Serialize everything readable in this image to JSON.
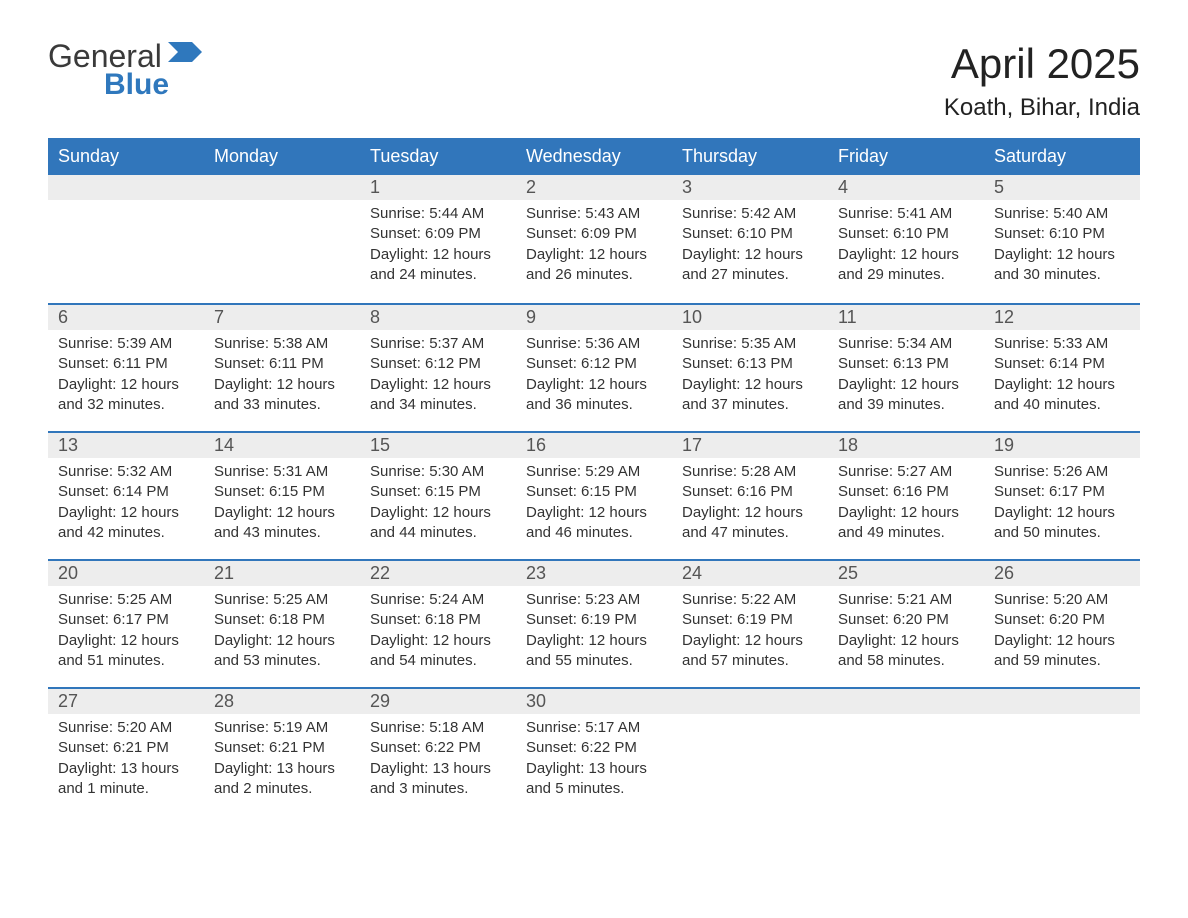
{
  "logo": {
    "text_general": "General",
    "text_blue": "Blue"
  },
  "title": "April 2025",
  "location": "Koath, Bihar, India",
  "colors": {
    "header_bg": "#3176bb",
    "header_text": "#ffffff",
    "daynum_bg": "#ededed",
    "row_border": "#3176bb",
    "body_text": "#333333",
    "logo_blue": "#2f78bd"
  },
  "weekdays": [
    "Sunday",
    "Monday",
    "Tuesday",
    "Wednesday",
    "Thursday",
    "Friday",
    "Saturday"
  ],
  "weeks": [
    [
      null,
      null,
      {
        "d": "1",
        "sr": "Sunrise: 5:44 AM",
        "ss": "Sunset: 6:09 PM",
        "dl": "Daylight: 12 hours and 24 minutes."
      },
      {
        "d": "2",
        "sr": "Sunrise: 5:43 AM",
        "ss": "Sunset: 6:09 PM",
        "dl": "Daylight: 12 hours and 26 minutes."
      },
      {
        "d": "3",
        "sr": "Sunrise: 5:42 AM",
        "ss": "Sunset: 6:10 PM",
        "dl": "Daylight: 12 hours and 27 minutes."
      },
      {
        "d": "4",
        "sr": "Sunrise: 5:41 AM",
        "ss": "Sunset: 6:10 PM",
        "dl": "Daylight: 12 hours and 29 minutes."
      },
      {
        "d": "5",
        "sr": "Sunrise: 5:40 AM",
        "ss": "Sunset: 6:10 PM",
        "dl": "Daylight: 12 hours and 30 minutes."
      }
    ],
    [
      {
        "d": "6",
        "sr": "Sunrise: 5:39 AM",
        "ss": "Sunset: 6:11 PM",
        "dl": "Daylight: 12 hours and 32 minutes."
      },
      {
        "d": "7",
        "sr": "Sunrise: 5:38 AM",
        "ss": "Sunset: 6:11 PM",
        "dl": "Daylight: 12 hours and 33 minutes."
      },
      {
        "d": "8",
        "sr": "Sunrise: 5:37 AM",
        "ss": "Sunset: 6:12 PM",
        "dl": "Daylight: 12 hours and 34 minutes."
      },
      {
        "d": "9",
        "sr": "Sunrise: 5:36 AM",
        "ss": "Sunset: 6:12 PM",
        "dl": "Daylight: 12 hours and 36 minutes."
      },
      {
        "d": "10",
        "sr": "Sunrise: 5:35 AM",
        "ss": "Sunset: 6:13 PM",
        "dl": "Daylight: 12 hours and 37 minutes."
      },
      {
        "d": "11",
        "sr": "Sunrise: 5:34 AM",
        "ss": "Sunset: 6:13 PM",
        "dl": "Daylight: 12 hours and 39 minutes."
      },
      {
        "d": "12",
        "sr": "Sunrise: 5:33 AM",
        "ss": "Sunset: 6:14 PM",
        "dl": "Daylight: 12 hours and 40 minutes."
      }
    ],
    [
      {
        "d": "13",
        "sr": "Sunrise: 5:32 AM",
        "ss": "Sunset: 6:14 PM",
        "dl": "Daylight: 12 hours and 42 minutes."
      },
      {
        "d": "14",
        "sr": "Sunrise: 5:31 AM",
        "ss": "Sunset: 6:15 PM",
        "dl": "Daylight: 12 hours and 43 minutes."
      },
      {
        "d": "15",
        "sr": "Sunrise: 5:30 AM",
        "ss": "Sunset: 6:15 PM",
        "dl": "Daylight: 12 hours and 44 minutes."
      },
      {
        "d": "16",
        "sr": "Sunrise: 5:29 AM",
        "ss": "Sunset: 6:15 PM",
        "dl": "Daylight: 12 hours and 46 minutes."
      },
      {
        "d": "17",
        "sr": "Sunrise: 5:28 AM",
        "ss": "Sunset: 6:16 PM",
        "dl": "Daylight: 12 hours and 47 minutes."
      },
      {
        "d": "18",
        "sr": "Sunrise: 5:27 AM",
        "ss": "Sunset: 6:16 PM",
        "dl": "Daylight: 12 hours and 49 minutes."
      },
      {
        "d": "19",
        "sr": "Sunrise: 5:26 AM",
        "ss": "Sunset: 6:17 PM",
        "dl": "Daylight: 12 hours and 50 minutes."
      }
    ],
    [
      {
        "d": "20",
        "sr": "Sunrise: 5:25 AM",
        "ss": "Sunset: 6:17 PM",
        "dl": "Daylight: 12 hours and 51 minutes."
      },
      {
        "d": "21",
        "sr": "Sunrise: 5:25 AM",
        "ss": "Sunset: 6:18 PM",
        "dl": "Daylight: 12 hours and 53 minutes."
      },
      {
        "d": "22",
        "sr": "Sunrise: 5:24 AM",
        "ss": "Sunset: 6:18 PM",
        "dl": "Daylight: 12 hours and 54 minutes."
      },
      {
        "d": "23",
        "sr": "Sunrise: 5:23 AM",
        "ss": "Sunset: 6:19 PM",
        "dl": "Daylight: 12 hours and 55 minutes."
      },
      {
        "d": "24",
        "sr": "Sunrise: 5:22 AM",
        "ss": "Sunset: 6:19 PM",
        "dl": "Daylight: 12 hours and 57 minutes."
      },
      {
        "d": "25",
        "sr": "Sunrise: 5:21 AM",
        "ss": "Sunset: 6:20 PM",
        "dl": "Daylight: 12 hours and 58 minutes."
      },
      {
        "d": "26",
        "sr": "Sunrise: 5:20 AM",
        "ss": "Sunset: 6:20 PM",
        "dl": "Daylight: 12 hours and 59 minutes."
      }
    ],
    [
      {
        "d": "27",
        "sr": "Sunrise: 5:20 AM",
        "ss": "Sunset: 6:21 PM",
        "dl": "Daylight: 13 hours and 1 minute."
      },
      {
        "d": "28",
        "sr": "Sunrise: 5:19 AM",
        "ss": "Sunset: 6:21 PM",
        "dl": "Daylight: 13 hours and 2 minutes."
      },
      {
        "d": "29",
        "sr": "Sunrise: 5:18 AM",
        "ss": "Sunset: 6:22 PM",
        "dl": "Daylight: 13 hours and 3 minutes."
      },
      {
        "d": "30",
        "sr": "Sunrise: 5:17 AM",
        "ss": "Sunset: 6:22 PM",
        "dl": "Daylight: 13 hours and 5 minutes."
      },
      null,
      null,
      null
    ]
  ]
}
